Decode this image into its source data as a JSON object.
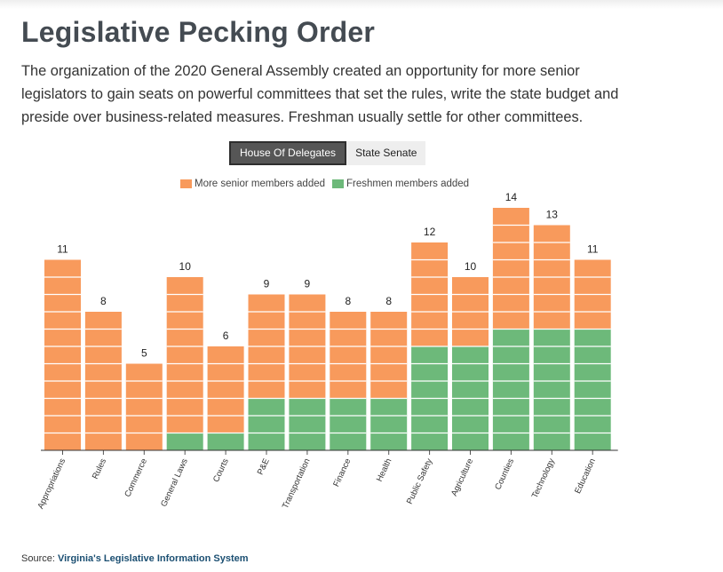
{
  "title": "Legislative Pecking Order",
  "subtitle": "The organization of the 2020 General Assembly created an opportunity for more senior legislators to gain seats on powerful committees that set the rules, write the state budget and preside over business-related measures. Freshman usually settle for other committees.",
  "tabs": [
    {
      "label": "House Of Delegates",
      "active": true
    },
    {
      "label": "State Senate",
      "active": false
    }
  ],
  "source": {
    "prefix": "Source:",
    "link_text": "Virginia's Legislative Information System"
  },
  "colors": {
    "senior": "#f89a5c",
    "freshmen": "#6db97a",
    "tab_active": "#565656"
  },
  "chart_data": {
    "type": "bar",
    "stacked": true,
    "categories": [
      "Appropriations",
      "Rules",
      "Commerce",
      "General Laws",
      "Courts",
      "P&E",
      "Transportation",
      "Finance",
      "Health",
      "Public Safety",
      "Agriculture",
      "Counties",
      "Technology",
      "Education"
    ],
    "series": [
      {
        "name": "More senior members added",
        "values": [
          11,
          8,
          5,
          9,
          5,
          6,
          6,
          5,
          5,
          6,
          4,
          7,
          6,
          4
        ]
      },
      {
        "name": "Freshmen members added",
        "values": [
          0,
          0,
          0,
          1,
          1,
          3,
          3,
          3,
          3,
          6,
          6,
          7,
          7,
          7
        ]
      }
    ],
    "totals": [
      11,
      8,
      5,
      10,
      6,
      9,
      9,
      8,
      8,
      12,
      10,
      14,
      13,
      11
    ],
    "legend_position": "top-center",
    "grid": false
  }
}
